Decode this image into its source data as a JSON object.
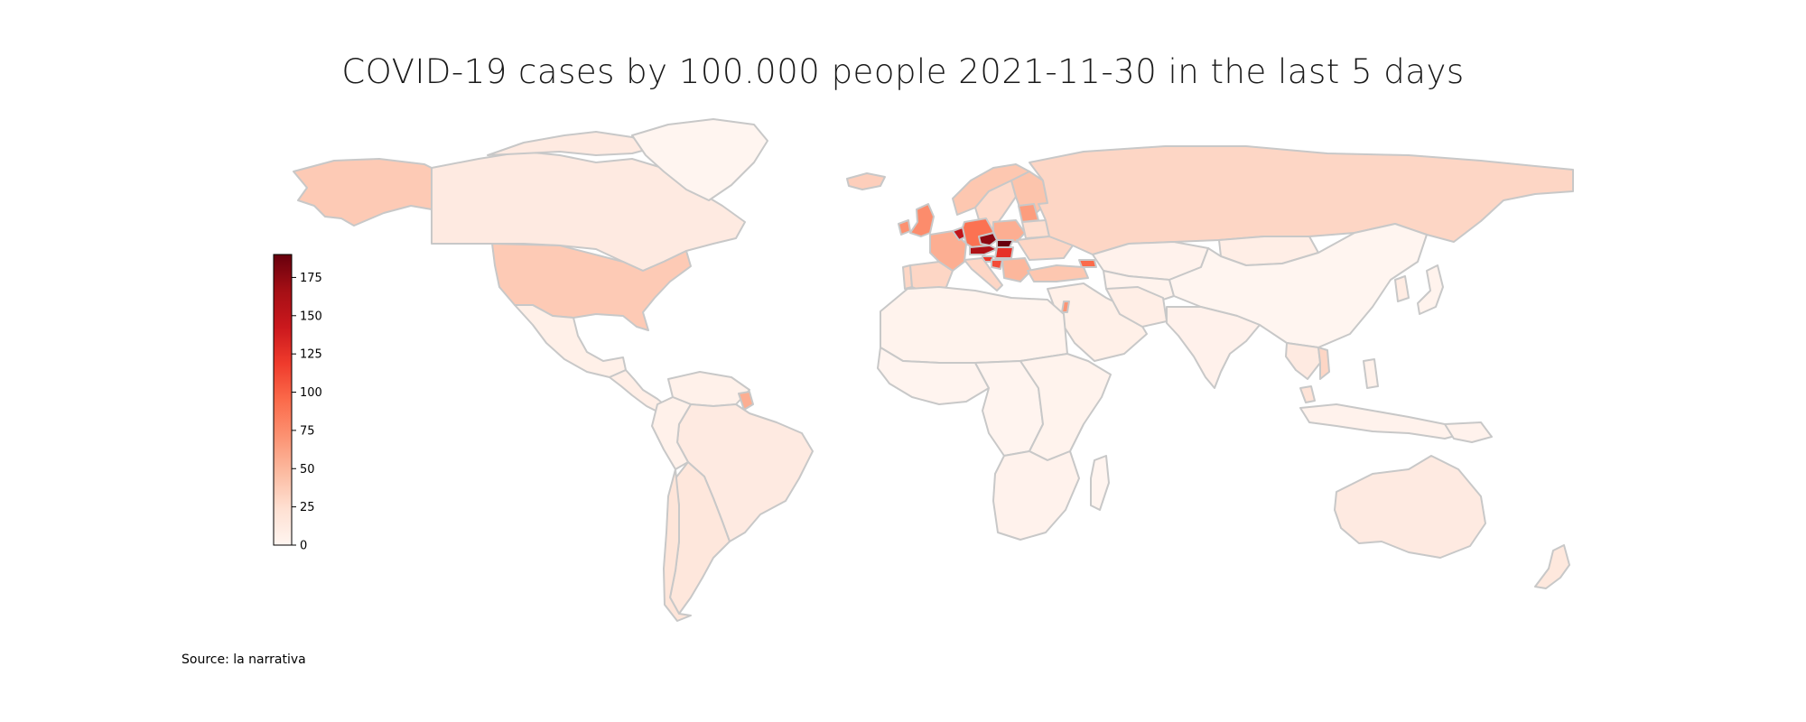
{
  "title": "COVID-19 cases by 100.000 people 2021-11-30 in the last 5 days",
  "source": "Source: la narrativa",
  "colorbar": {
    "cmap": "Reds",
    "min": 0,
    "max": 190,
    "ticks": [
      0,
      25,
      50,
      75,
      100,
      125,
      150,
      175
    ]
  },
  "regions": [
    {
      "name": "Alaska (USA)",
      "value": 38
    },
    {
      "name": "Canada",
      "value": 12
    },
    {
      "name": "Greenland",
      "value": 0
    },
    {
      "name": "United States",
      "value": 38
    },
    {
      "name": "Mexico",
      "value": 6
    },
    {
      "name": "Central America",
      "value": 8
    },
    {
      "name": "Venezuela",
      "value": 5
    },
    {
      "name": "French Guiana",
      "value": 55
    },
    {
      "name": "Brazil",
      "value": 12
    },
    {
      "name": "Peru",
      "value": 5
    },
    {
      "name": "Chile",
      "value": 18
    },
    {
      "name": "Argentina",
      "value": 16
    },
    {
      "name": "Iceland",
      "value": 35
    },
    {
      "name": "United Kingdom",
      "value": 75
    },
    {
      "name": "Ireland",
      "value": 72
    },
    {
      "name": "Norway",
      "value": 40
    },
    {
      "name": "Sweden",
      "value": 28
    },
    {
      "name": "Finland",
      "value": 42
    },
    {
      "name": "Portugal",
      "value": 30
    },
    {
      "name": "Spain",
      "value": 30
    },
    {
      "name": "France",
      "value": 55
    },
    {
      "name": "Belgium",
      "value": 150
    },
    {
      "name": "Germany",
      "value": 90
    },
    {
      "name": "Poland",
      "value": 55
    },
    {
      "name": "Czechia",
      "value": 175
    },
    {
      "name": "Slovakia",
      "value": 190
    },
    {
      "name": "Austria",
      "value": 160
    },
    {
      "name": "Hungary",
      "value": 125
    },
    {
      "name": "Slovenia",
      "value": 120
    },
    {
      "name": "Croatia",
      "value": 110
    },
    {
      "name": "Italy",
      "value": 30
    },
    {
      "name": "Balkans",
      "value": 50
    },
    {
      "name": "Ukraine",
      "value": 30
    },
    {
      "name": "Belarus",
      "value": 25
    },
    {
      "name": "Baltics",
      "value": 65
    },
    {
      "name": "Turkey",
      "value": 40
    },
    {
      "name": "Georgia",
      "value": 95
    },
    {
      "name": "Russia",
      "value": 30
    },
    {
      "name": "Kazakhstan",
      "value": 3
    },
    {
      "name": "Central Asia",
      "value": 2
    },
    {
      "name": "Mongolia",
      "value": 8
    },
    {
      "name": "China",
      "value": 0
    },
    {
      "name": "Korea",
      "value": 10
    },
    {
      "name": "Japan",
      "value": 2
    },
    {
      "name": "Middle East",
      "value": 6
    },
    {
      "name": "Israel",
      "value": 70
    },
    {
      "name": "Iran",
      "value": 8
    },
    {
      "name": "India",
      "value": 4
    },
    {
      "name": "Southeast Asia",
      "value": 12
    },
    {
      "name": "Vietnam",
      "value": 30
    },
    {
      "name": "Malaysia",
      "value": 20
    },
    {
      "name": "Indonesia",
      "value": 3
    },
    {
      "name": "Philippines",
      "value": 5
    },
    {
      "name": "Papua New Guinea",
      "value": 3
    },
    {
      "name": "North Africa",
      "value": 2
    },
    {
      "name": "West Africa",
      "value": 1
    },
    {
      "name": "Central Africa",
      "value": 1
    },
    {
      "name": "East Africa",
      "value": 2
    },
    {
      "name": "Southern Africa",
      "value": 3
    },
    {
      "name": "Madagascar",
      "value": 1
    },
    {
      "name": "Australia",
      "value": 12
    },
    {
      "name": "New Zealand",
      "value": 15
    }
  ]
}
